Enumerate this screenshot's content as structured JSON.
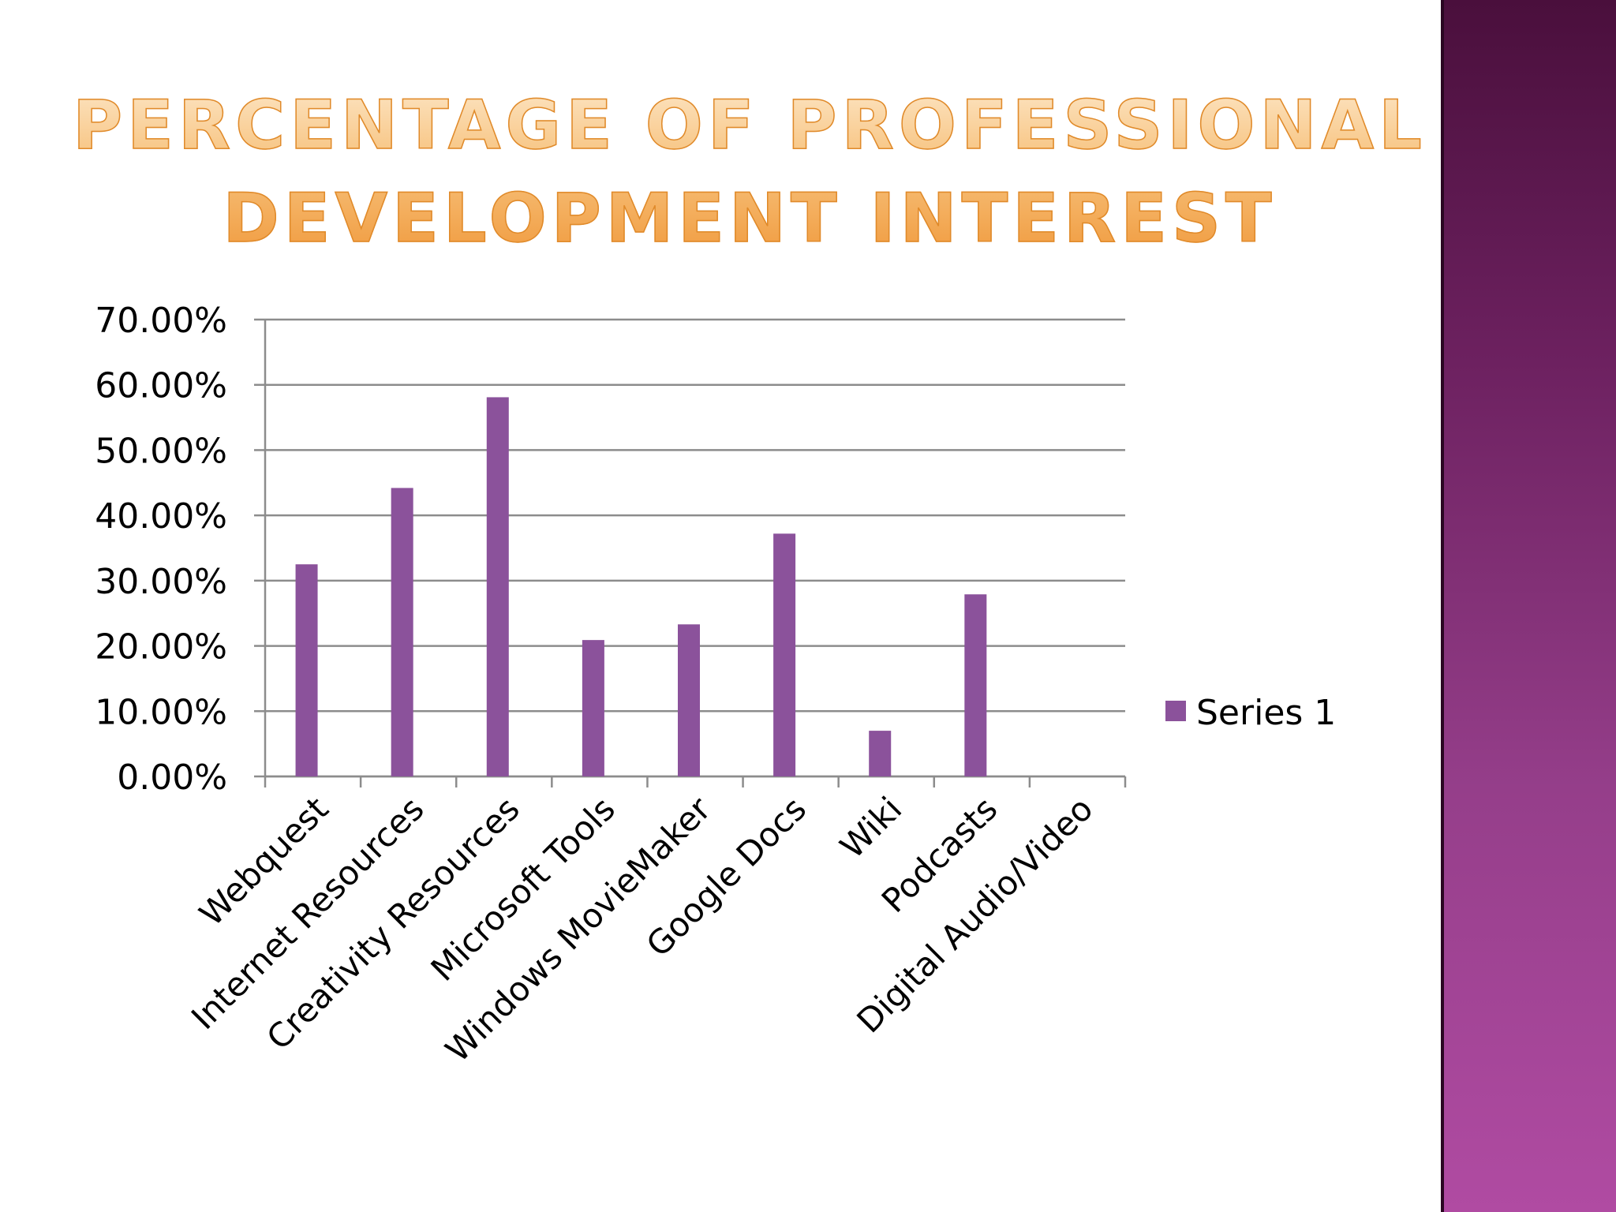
{
  "slide": {
    "title_line1": "Percentage of Professional",
    "title_line2": "Development Interest"
  },
  "chart_data": {
    "type": "bar",
    "title": "",
    "xlabel": "",
    "ylabel": "",
    "categories": [
      "Webquest",
      "Internet Resources",
      "Creativity Resources",
      "Microsoft Tools",
      "Windows MovieMaker",
      "Google Docs",
      "Wiki",
      "Podcasts",
      "Digital Audio/Video"
    ],
    "series": [
      {
        "name": "Series 1",
        "values": [
          32.5,
          44.2,
          58.1,
          20.9,
          23.3,
          37.2,
          7.0,
          27.9,
          0
        ]
      }
    ],
    "ylim": [
      0,
      70
    ],
    "yticks": [
      "0.00%",
      "10.00%",
      "20.00%",
      "30.00%",
      "40.00%",
      "50.00%",
      "60.00%",
      "70.00%"
    ],
    "grid": true,
    "legend": "right",
    "colors": {
      "bar": "#8b529b",
      "grid": "#8c8c8c"
    }
  }
}
